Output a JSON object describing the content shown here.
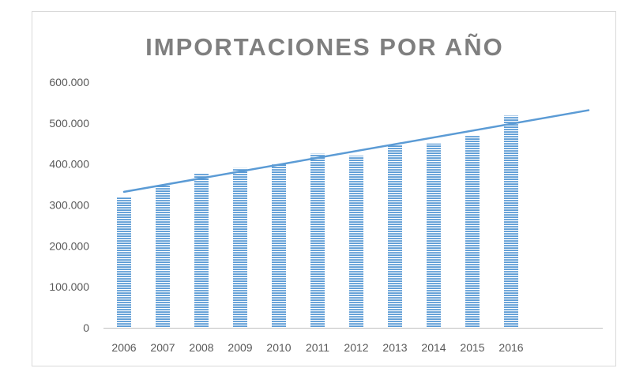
{
  "chart_data": {
    "type": "bar",
    "title": "IMPORTACIONES POR AÑO",
    "xlabel": "",
    "ylabel": "",
    "categories": [
      "2006",
      "2007",
      "2008",
      "2009",
      "2010",
      "2011",
      "2012",
      "2013",
      "2014",
      "2015",
      "2016"
    ],
    "series": [
      {
        "values": [
          320000,
          348000,
          378000,
          390000,
          400000,
          425000,
          420000,
          447000,
          450000,
          470000,
          518000
        ]
      }
    ],
    "trendline": {
      "type": "linear",
      "forward_periods": 2
    },
    "ylim": [
      0,
      600000
    ],
    "yticks": [
      0,
      100000,
      200000,
      300000,
      400000,
      500000,
      600000
    ],
    "ytick_labels": [
      "0",
      "100.000",
      "200.000",
      "300.000",
      "400.000",
      "500.000",
      "600.000"
    ],
    "grid": false,
    "legend": "none",
    "colors": {
      "bar": "#5b9bd5",
      "bar_stripe": "#ffffff",
      "trendline": "#5b9bd5"
    }
  }
}
